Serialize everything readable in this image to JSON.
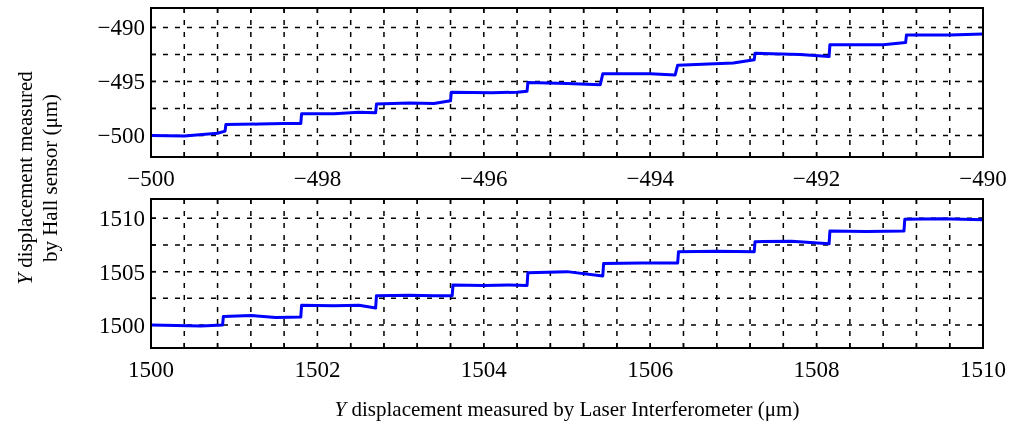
{
  "chart_data": [
    {
      "type": "line",
      "ylabel": "Y displacement measured by Hall sensor (μm)",
      "xlim": [
        -500,
        -490
      ],
      "ylim": [
        -502,
        -488.2
      ],
      "xticks": [
        -500,
        {
          "value": -499.6,
          "label": null
        },
        {
          "value": -499.2,
          "label": null
        },
        {
          "value": -498.8,
          "label": null
        },
        {
          "value": -498.4,
          "label": null
        },
        {
          "value": -498,
          "label": "−498"
        },
        {
          "value": -497.6,
          "label": null
        },
        {
          "value": -497.2,
          "label": null
        },
        {
          "value": -496.8,
          "label": null
        },
        {
          "value": -496.4,
          "label": null
        },
        {
          "value": -496,
          "label": "−496"
        },
        {
          "value": -495.6,
          "label": null
        },
        {
          "value": -495.2,
          "label": null
        },
        {
          "value": -494.8,
          "label": null
        },
        {
          "value": -494.4,
          "label": null
        },
        {
          "value": -494,
          "label": "−494"
        },
        {
          "value": -493.6,
          "label": null
        },
        {
          "value": -493.2,
          "label": null
        },
        {
          "value": -492.8,
          "label": null
        },
        {
          "value": -492.4,
          "label": null
        },
        {
          "value": -492,
          "label": "−492"
        },
        {
          "value": -491.6,
          "label": null
        },
        {
          "value": -491.2,
          "label": null
        },
        {
          "value": -490.8,
          "label": null
        },
        {
          "value": -490.4,
          "label": null
        },
        {
          "value": -490,
          "label": "−490"
        }
      ],
      "yticks": [
        {
          "value": -500,
          "label": "−500"
        },
        {
          "value": -497.5,
          "label": null
        },
        {
          "value": -495,
          "label": "−495"
        },
        {
          "value": -492.5,
          "label": null
        },
        {
          "value": -490,
          "label": "−490"
        }
      ],
      "grid": true,
      "line_style": "solid",
      "marker": "none",
      "series": [
        {
          "color": "#0000ff",
          "x": [
            -500,
            -499.6,
            -499.2,
            -499.11,
            -499.1,
            -498.7,
            -498.4,
            -498.2,
            -498.19,
            -497.8,
            -497.5,
            -497.3,
            -497.29,
            -496.9,
            -496.6,
            -496.4,
            -496.39,
            -495.9,
            -495.6,
            -495.48,
            -495.47,
            -495.0,
            -494.6,
            -494.57,
            -494.0,
            -493.7,
            -493.67,
            -493.0,
            -492.75,
            -492.74,
            -492.2,
            -491.85,
            -491.84,
            -491.2,
            -490.93,
            -490.92,
            -490.4,
            -490
          ],
          "values": [
            -500.0,
            -500.05,
            -499.8,
            -499.6,
            -499.0,
            -498.95,
            -498.9,
            -498.9,
            -498.0,
            -498.0,
            -497.85,
            -497.9,
            -497.1,
            -497.0,
            -497.05,
            -496.8,
            -496.0,
            -496.05,
            -496.0,
            -495.9,
            -495.1,
            -495.2,
            -495.3,
            -494.3,
            -494.3,
            -494.4,
            -493.5,
            -493.3,
            -493.0,
            -492.4,
            -492.5,
            -492.7,
            -491.6,
            -491.6,
            -491.4,
            -490.7,
            -490.7,
            -490.6
          ]
        }
      ]
    },
    {
      "type": "line",
      "xlabel": "Y displacement measured by Laser Interferometer (μm)",
      "xlim": [
        1500,
        1510
      ],
      "ylim": [
        1497.85,
        1511.8
      ],
      "xticks": [
        1500,
        {
          "value": 1500.4,
          "label": null
        },
        {
          "value": 1500.8,
          "label": null
        },
        {
          "value": 1501.2,
          "label": null
        },
        {
          "value": 1501.6,
          "label": null
        },
        1502,
        {
          "value": 1502.4,
          "label": null
        },
        {
          "value": 1502.8,
          "label": null
        },
        {
          "value": 1503.2,
          "label": null
        },
        {
          "value": 1503.6,
          "label": null
        },
        1504,
        {
          "value": 1504.4,
          "label": null
        },
        {
          "value": 1504.8,
          "label": null
        },
        {
          "value": 1505.2,
          "label": null
        },
        {
          "value": 1505.6,
          "label": null
        },
        1506,
        {
          "value": 1506.4,
          "label": null
        },
        {
          "value": 1506.8,
          "label": null
        },
        {
          "value": 1507.2,
          "label": null
        },
        {
          "value": 1507.6,
          "label": null
        },
        1508,
        {
          "value": 1508.4,
          "label": null
        },
        {
          "value": 1508.8,
          "label": null
        },
        {
          "value": 1509.2,
          "label": null
        },
        {
          "value": 1509.6,
          "label": null
        },
        1510
      ],
      "yticks": [
        1500,
        {
          "value": 1502.5,
          "label": null
        },
        1505,
        {
          "value": 1507.5,
          "label": null
        },
        1510
      ],
      "grid": true,
      "line_style": "solid",
      "marker": "none",
      "series": [
        {
          "color": "#0000ff",
          "x": [
            1500,
            1500.3,
            1500.6,
            1500.86,
            1500.87,
            1501.2,
            1501.5,
            1501.8,
            1501.81,
            1502.2,
            1502.5,
            1502.7,
            1502.71,
            1503.1,
            1503.4,
            1503.62,
            1503.63,
            1504.0,
            1504.3,
            1504.52,
            1504.53,
            1505.0,
            1505.43,
            1505.44,
            1505.9,
            1506.33,
            1506.34,
            1506.8,
            1507.25,
            1507.26,
            1507.7,
            1508.15,
            1508.16,
            1508.6,
            1509.05,
            1509.06,
            1509.5,
            1510
          ],
          "values": [
            1500.0,
            1499.95,
            1499.9,
            1500.0,
            1500.8,
            1500.9,
            1500.7,
            1500.75,
            1501.85,
            1501.8,
            1501.85,
            1501.6,
            1502.75,
            1502.8,
            1502.75,
            1502.75,
            1503.75,
            1503.7,
            1503.75,
            1503.7,
            1504.9,
            1505.0,
            1504.6,
            1505.75,
            1505.8,
            1505.8,
            1506.85,
            1506.9,
            1506.85,
            1507.8,
            1507.85,
            1507.6,
            1508.8,
            1508.75,
            1508.8,
            1509.9,
            1509.95,
            1509.85
          ]
        }
      ]
    }
  ]
}
